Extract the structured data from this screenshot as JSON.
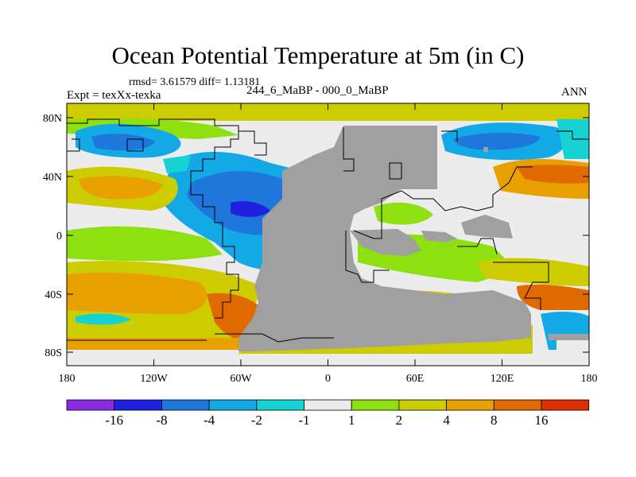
{
  "title": "Ocean Potential Temperature at 5m (in C)",
  "stats": "rmsd= 3.61579 diff= 1.13181",
  "experiment": "Expt = texXx-texka",
  "subtitle": "244_6_MaBP - 000_0_MaBP",
  "season": "ANN",
  "lat_ticks": [
    "80N",
    "40N",
    "0",
    "40S",
    "80S"
  ],
  "lon_ticks": [
    "180",
    "120W",
    "60W",
    "0",
    "60E",
    "120E",
    "180"
  ],
  "colorbar": {
    "labels": [
      "-16",
      "-8",
      "-4",
      "-2",
      "-1",
      "1",
      "2",
      "4",
      "8",
      "16"
    ],
    "colors": [
      "#8a2be2",
      "#2020e0",
      "#1e78dc",
      "#13a8e6",
      "#16d2d2",
      "#ececec",
      "#8ee010",
      "#cccc00",
      "#e8a000",
      "#e06a00",
      "#dc3000"
    ]
  },
  "map_colors": {
    "land": "#a0a0a0",
    "no_change": "#ececec",
    "coast": "#000000"
  }
}
